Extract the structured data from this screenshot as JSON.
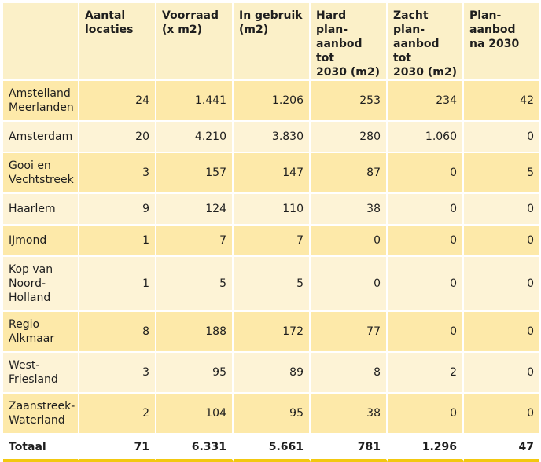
{
  "headers": [
    "",
    "Aantal\nlocaties",
    "Voorraad\n(x m2)",
    "In gebruik\n(m2)",
    "Hard plan-\naanbod tot\n2030 (m2)",
    "Zacht plan-\naanbod tot\n2030 (m2)",
    "Plan-\naanbod\nna 2030"
  ],
  "rows": [
    {
      "name": "Amstelland\nMeerlanden",
      "values": [
        "24",
        "1.441",
        "1.206",
        "253",
        "234",
        "42"
      ]
    },
    {
      "name": "Amsterdam",
      "values": [
        "20",
        "4.210",
        "3.830",
        "280",
        "1.060",
        "0"
      ]
    },
    {
      "name": "Gooi en\nVechtstreek",
      "values": [
        "3",
        "157",
        "147",
        "87",
        "0",
        "5"
      ]
    },
    {
      "name": "Haarlem",
      "values": [
        "9",
        "124",
        "110",
        "38",
        "0",
        "0"
      ]
    },
    {
      "name": "IJmond",
      "values": [
        "1",
        "7",
        "7",
        "0",
        "0",
        "0"
      ]
    },
    {
      "name": "Kop van\nNoord-\nHolland",
      "values": [
        "1",
        "5",
        "5",
        "0",
        "0",
        "0"
      ]
    },
    {
      "name": "Regio\nAlkmaar",
      "values": [
        "8",
        "188",
        "172",
        "77",
        "0",
        "0"
      ]
    },
    {
      "name": "West-\nFriesland",
      "values": [
        "3",
        "95",
        "89",
        "8",
        "2",
        "0"
      ]
    },
    {
      "name": "Zaanstreek-\nWaterland",
      "values": [
        "2",
        "104",
        "95",
        "38",
        "0",
        "0"
      ]
    }
  ],
  "total": {
    "name": "Totaal",
    "values": [
      "71",
      "6.331",
      "5.661",
      "781",
      "1.296",
      "47"
    ]
  },
  "colors": {
    "header_bg": "#fbf0c8",
    "row_odd": "#fde9a9",
    "row_even": "#fdf3d6",
    "accent_line": "#f2c80f"
  }
}
